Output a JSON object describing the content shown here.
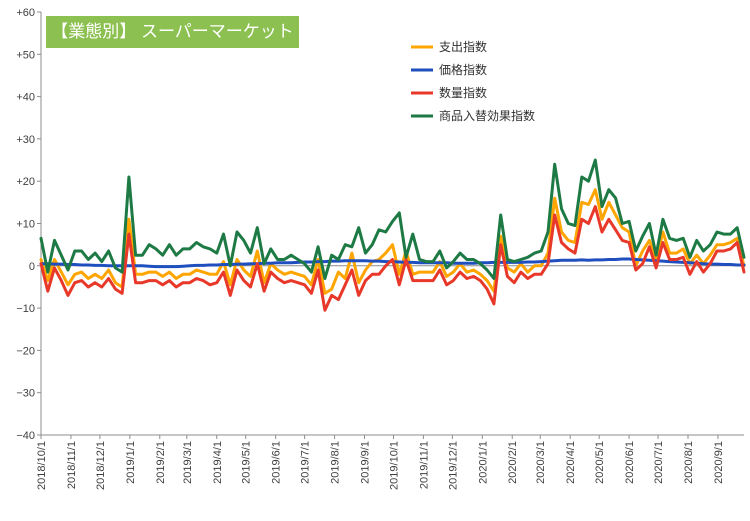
{
  "chart_data": {
    "type": "line",
    "title": "【業態別】 スーパーマーケット",
    "xlabel": "",
    "ylabel": "",
    "ylim": [
      -40,
      60
    ],
    "y_ticks": [
      60,
      50,
      40,
      30,
      20,
      10,
      0,
      -10,
      -20,
      -30,
      -40
    ],
    "y_tick_labels": [
      "+60",
      "+50",
      "+40",
      "+30",
      "+20",
      "+10",
      "0",
      "−10",
      "−20",
      "−30",
      "−40"
    ],
    "x_tick_labels": [
      "2018/10/1",
      "2018/11/1",
      "2018/12/1",
      "2019/1/1",
      "2019/2/1",
      "2019/3/1",
      "2019/4/1",
      "2019/5/1",
      "2019/6/1",
      "2019/7/1",
      "2019/8/1",
      "2019/9/1",
      "2019/10/1",
      "2019/11/1",
      "2019/12/1",
      "2020/1/1",
      "2020/2/1",
      "2020/3/1",
      "2020/4/1",
      "2020/5/1",
      "2020/6/1",
      "2020/7/1",
      "2020/8/1",
      "2020/9/1"
    ],
    "x_start": "2018/10/1",
    "x_step_days": 7,
    "grid": false,
    "legend_position": "top-right",
    "series": [
      {
        "name": "支出指数",
        "color": "#ffa500",
        "values": [
          1.5,
          -3.5,
          1.5,
          -1.5,
          -4.5,
          -2.0,
          -1.5,
          -3.0,
          -2.0,
          -3.0,
          -1.0,
          -4.0,
          -5.0,
          11.0,
          -2.0,
          -2.0,
          -1.5,
          -1.5,
          -2.5,
          -1.5,
          -3.0,
          -2.0,
          -2.0,
          -1.0,
          -1.5,
          -2.0,
          -2.0,
          1.0,
          -4.5,
          1.5,
          -1.0,
          -2.5,
          3.5,
          -4.0,
          0.5,
          -1.0,
          -2.0,
          -1.5,
          -2.0,
          -2.5,
          -4.5,
          1.5,
          -6.5,
          -5.5,
          -1.5,
          -3.0,
          3.0,
          -4.0,
          -1.0,
          1.0,
          1.5,
          3.0,
          5.0,
          -2.0,
          3.5,
          -2.0,
          -1.5,
          -1.5,
          -1.5,
          1.0,
          -2.5,
          -1.5,
          0.5,
          -1.5,
          -1.0,
          -2.0,
          -3.5,
          -6.0,
          7.0,
          -0.5,
          -1.5,
          0.5,
          -1.5,
          0.0,
          0.0,
          3.0,
          16.0,
          8.0,
          6.0,
          5.5,
          15.0,
          14.5,
          18.0,
          11.0,
          15.0,
          12.0,
          9.0,
          8.0,
          0.0,
          3.5,
          6.0,
          1.5,
          8.0,
          3.0,
          3.0,
          4.0,
          0.5,
          2.5,
          0.5,
          2.5,
          5.0,
          5.0,
          5.5,
          6.5,
          0.0
        ]
      },
      {
        "name": "価格指数",
        "color": "#1f4fbf",
        "values": [
          0.5,
          0.5,
          0.4,
          0.4,
          0.3,
          0.3,
          0.2,
          0.2,
          0.1,
          0.1,
          0.0,
          0.0,
          0.0,
          0.0,
          0.0,
          0.0,
          -0.1,
          -0.2,
          -0.2,
          -0.2,
          -0.2,
          -0.1,
          0.0,
          0.1,
          0.1,
          0.2,
          0.2,
          0.3,
          0.3,
          0.4,
          0.4,
          0.5,
          0.5,
          0.6,
          0.6,
          0.7,
          0.7,
          0.7,
          0.8,
          0.9,
          0.9,
          1.0,
          1.0,
          1.1,
          1.1,
          1.2,
          1.2,
          1.2,
          1.2,
          1.1,
          1.1,
          1.0,
          1.0,
          0.9,
          0.8,
          0.8,
          0.7,
          0.7,
          0.7,
          0.7,
          0.7,
          0.6,
          0.6,
          0.6,
          0.6,
          0.7,
          0.7,
          0.8,
          0.8,
          0.8,
          0.8,
          0.8,
          0.9,
          0.9,
          1.0,
          1.1,
          1.2,
          1.3,
          1.3,
          1.3,
          1.4,
          1.3,
          1.4,
          1.4,
          1.5,
          1.5,
          1.6,
          1.6,
          1.5,
          1.4,
          1.3,
          1.2,
          1.1,
          1.0,
          0.9,
          0.8,
          0.7,
          0.6,
          0.5,
          0.4,
          0.4,
          0.3,
          0.3,
          0.2,
          0.2
        ]
      },
      {
        "name": "数量指数",
        "color": "#e8382a",
        "values": [
          0.5,
          -6.0,
          -0.5,
          -3.5,
          -7.0,
          -4.0,
          -3.5,
          -5.0,
          -4.0,
          -5.0,
          -3.0,
          -5.5,
          -6.5,
          7.5,
          -4.0,
          -4.0,
          -3.5,
          -3.5,
          -4.5,
          -3.5,
          -5.0,
          -4.0,
          -4.0,
          -3.0,
          -3.5,
          -4.5,
          -4.0,
          -1.5,
          -7.0,
          -1.0,
          -3.5,
          -5.0,
          0.5,
          -6.0,
          -1.5,
          -3.0,
          -4.0,
          -3.5,
          -4.0,
          -4.5,
          -6.5,
          -1.0,
          -10.5,
          -7.0,
          -8.0,
          -4.5,
          -1.0,
          -7.0,
          -3.5,
          -2.0,
          -2.0,
          0.0,
          1.5,
          -4.5,
          1.5,
          -3.5,
          -3.5,
          -3.5,
          -3.5,
          -1.0,
          -4.5,
          -3.5,
          -1.5,
          -3.0,
          -2.5,
          -3.5,
          -5.5,
          -9.0,
          5.0,
          -2.5,
          -4.0,
          -1.5,
          -3.0,
          -2.0,
          -2.0,
          0.5,
          12.0,
          5.5,
          4.0,
          3.0,
          11.0,
          10.0,
          14.0,
          8.0,
          11.0,
          8.5,
          6.0,
          5.5,
          -1.0,
          0.5,
          4.5,
          -0.5,
          5.5,
          1.5,
          1.5,
          2.0,
          -2.0,
          1.0,
          -1.5,
          0.5,
          3.5,
          3.5,
          4.0,
          5.5,
          -1.5
        ]
      },
      {
        "name": "商品入替効果指数",
        "color": "#1e7a45",
        "values": [
          6.5,
          -1.5,
          6.0,
          2.5,
          -1.0,
          3.5,
          3.5,
          1.5,
          3.0,
          1.0,
          3.5,
          -0.5,
          -1.5,
          21.0,
          2.5,
          2.5,
          5.0,
          4.0,
          2.5,
          5.0,
          2.5,
          4.0,
          4.0,
          5.5,
          4.5,
          4.0,
          3.0,
          7.5,
          0.0,
          8.0,
          6.0,
          3.0,
          9.0,
          0.5,
          4.0,
          1.5,
          1.5,
          2.5,
          1.5,
          0.5,
          -1.5,
          4.5,
          -3.0,
          2.5,
          1.5,
          5.0,
          4.5,
          9.0,
          3.0,
          5.0,
          8.5,
          8.0,
          10.5,
          12.5,
          2.0,
          7.5,
          1.5,
          1.0,
          1.0,
          3.5,
          -0.5,
          1.0,
          3.0,
          1.5,
          1.5,
          0.5,
          -1.0,
          -3.0,
          12.0,
          1.5,
          1.0,
          1.5,
          2.0,
          3.0,
          3.5,
          8.0,
          24.0,
          13.5,
          10.0,
          9.5,
          21.0,
          20.0,
          25.0,
          14.0,
          18.0,
          16.0,
          10.0,
          10.5,
          3.5,
          7.0,
          10.0,
          2.5,
          11.0,
          6.5,
          6.0,
          6.5,
          2.0,
          6.0,
          3.5,
          5.0,
          8.0,
          7.5,
          7.5,
          9.0,
          2.0
        ]
      }
    ]
  }
}
